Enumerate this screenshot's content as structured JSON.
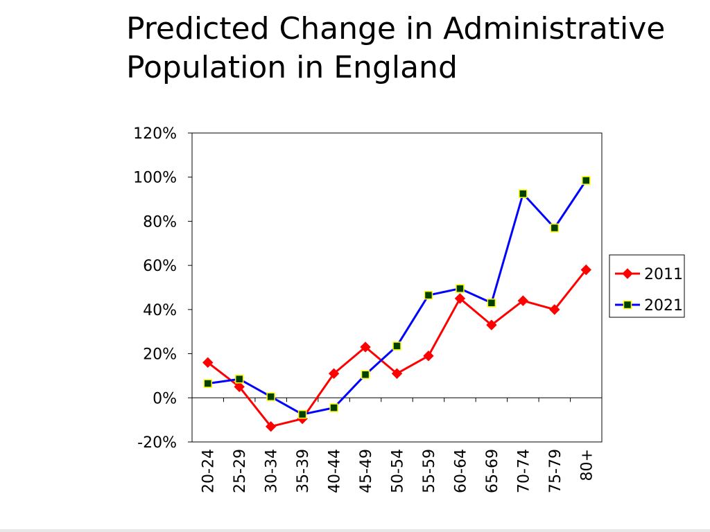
{
  "title": {
    "line1": "Predicted Change in Administrative",
    "line2": "Population in England"
  },
  "chart_data": {
    "type": "line",
    "title": "Predicted Change in Administrative Population in England",
    "xlabel": "",
    "ylabel": "",
    "categories": [
      "20-24",
      "25-29",
      "30-34",
      "35-39",
      "40-44",
      "45-49",
      "50-54",
      "55-59",
      "60-64",
      "65-69",
      "70-74",
      "75-79",
      "80+"
    ],
    "ylim": [
      -20,
      120
    ],
    "yticks": [
      -20,
      0,
      20,
      40,
      60,
      80,
      100,
      120
    ],
    "ytick_labels": [
      "-20%",
      "0%",
      "20%",
      "40%",
      "60%",
      "80%",
      "100%",
      "120%"
    ],
    "grid": false,
    "legend": "right",
    "series": [
      {
        "name": "2011",
        "values": [
          16,
          5,
          -13,
          -9.5,
          11,
          23,
          11,
          19,
          45,
          33,
          44,
          40,
          58
        ],
        "color": "#ff0000",
        "marker": "diamond",
        "marker_fill": "#ff0000"
      },
      {
        "name": "2021",
        "values": [
          6.5,
          8.5,
          0.5,
          -7.5,
          -4.5,
          10.5,
          23.5,
          46.5,
          49.5,
          43,
          92.5,
          77,
          98.5
        ],
        "color": "#0000ff",
        "marker": "square",
        "marker_fill": "#004000",
        "marker_stroke": "#ffff00"
      }
    ]
  }
}
